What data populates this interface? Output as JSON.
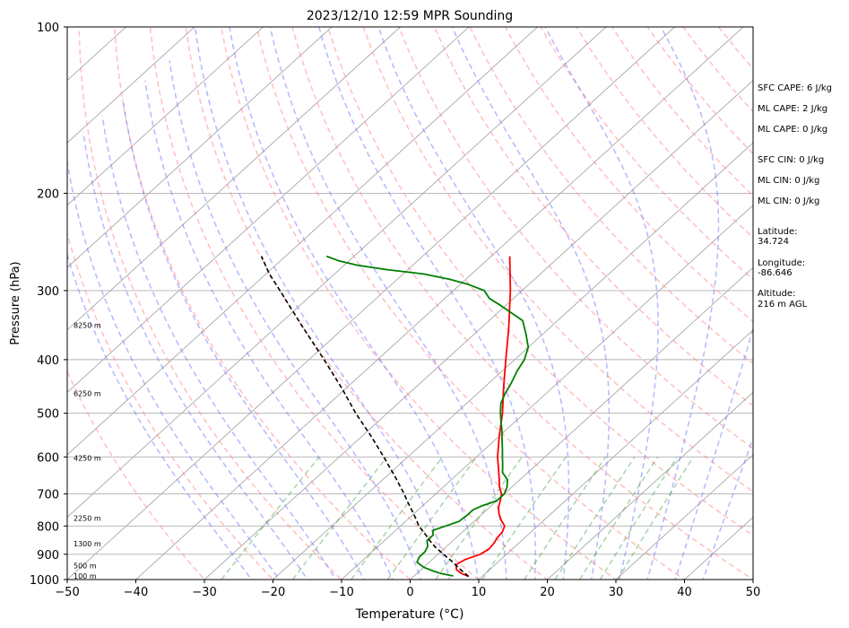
{
  "chart_data": {
    "type": "line",
    "title": "2023/12/10 12:59 MPR Sounding",
    "xlabel": "Temperature (°C)",
    "ylabel": "Pressure (hPa)",
    "xlim": [
      -50,
      50
    ],
    "ylim": [
      1000,
      100
    ],
    "y_scale": "log",
    "skew": true,
    "grid": true,
    "x_ticks": [
      -50,
      -40,
      -30,
      -20,
      -10,
      0,
      10,
      20,
      30,
      40,
      50
    ],
    "y_ticks": [
      1000,
      900,
      800,
      700,
      600,
      500,
      400,
      300,
      200,
      100
    ],
    "series": [
      {
        "color": "#ff0000",
        "pressure": [
          987,
          975,
          960,
          940,
          920,
          900,
          880,
          860,
          840,
          820,
          800,
          780,
          760,
          740,
          720,
          700,
          680,
          650,
          600,
          550,
          500,
          450,
          400,
          350,
          300,
          260
        ],
        "values": [
          8.0,
          6.5,
          5.2,
          4.3,
          4.8,
          6.2,
          6.6,
          6.4,
          6.0,
          5.8,
          5.2,
          3.7,
          2.4,
          1.3,
          0.5,
          -0.4,
          -1.8,
          -3.6,
          -6.9,
          -10.0,
          -13.2,
          -17.1,
          -21.3,
          -26.0,
          -31.7,
          -37.3
        ]
      },
      {
        "color": "#008000",
        "pressure": [
          985,
          975,
          965,
          950,
          930,
          910,
          890,
          870,
          850,
          830,
          815,
          800,
          785,
          765,
          748,
          735,
          720,
          700,
          680,
          660,
          640,
          620,
          600,
          580,
          560,
          540,
          520,
          500,
          480,
          460,
          440,
          420,
          400,
          380,
          360,
          340,
          320,
          310,
          300,
          292,
          286,
          280,
          275,
          270,
          265,
          260
        ],
        "values": [
          5.7,
          3.5,
          2.0,
          0.0,
          -1.8,
          -2.3,
          -2.3,
          -2.8,
          -3.8,
          -3.8,
          -4.6,
          -3.4,
          -2.2,
          -2.0,
          -2.0,
          -1.3,
          0.0,
          0.0,
          -0.7,
          -1.8,
          -3.7,
          -4.9,
          -6.2,
          -7.5,
          -8.9,
          -10.3,
          -11.9,
          -13.5,
          -15.0,
          -16.0,
          -16.8,
          -17.8,
          -18.6,
          -20.0,
          -22.4,
          -25.1,
          -30.5,
          -33.5,
          -35.5,
          -39.0,
          -42.5,
          -47.0,
          -53.0,
          -58.0,
          -61.5,
          -64.0
        ]
      },
      {
        "color": "#000000",
        "pressure": [
          987,
          960,
          925,
          900,
          875,
          850,
          825,
          800,
          775,
          750,
          725,
          700,
          650,
          600,
          550,
          500,
          450,
          400,
          350,
          300,
          280,
          260
        ],
        "values": [
          8.0,
          5.8,
          3.0,
          0.8,
          -1.4,
          -3.4,
          -5.3,
          -7.3,
          -9.0,
          -10.8,
          -12.7,
          -14.6,
          -18.8,
          -23.5,
          -28.7,
          -34.6,
          -40.7,
          -47.8,
          -56.0,
          -65.3,
          -69.5,
          -73.5
        ]
      }
    ],
    "height_labels": [
      {
        "text": "100 m",
        "pressure": 988
      },
      {
        "text": "500 m",
        "pressure": 947
      },
      {
        "text": "1300 m",
        "pressure": 864
      },
      {
        "text": "2250 m",
        "pressure": 777
      },
      {
        "text": "4250 m",
        "pressure": 605
      },
      {
        "text": "6250 m",
        "pressure": 462
      },
      {
        "text": "8250 m",
        "pressure": 348
      }
    ]
  },
  "indices": {
    "sfc_cape": "SFC CAPE: 6 J/kg",
    "ml_cape_1": "ML CAPE: 2 J/kg",
    "ml_cape_2": "ML CAPE: 0 J/kg",
    "sfc_cin": "SFC CIN: 0 J/kg",
    "ml_cin_1": "ML CIN: 0 J/kg",
    "ml_cin_2": "ML CIN: 0 J/kg"
  },
  "location": {
    "latitude_label": "Latitude:",
    "latitude": "34.724",
    "longitude_label": "Longitude:",
    "longitude": "-86.646",
    "altitude_label": "Altitude:",
    "altitude": "216 m AGL"
  }
}
